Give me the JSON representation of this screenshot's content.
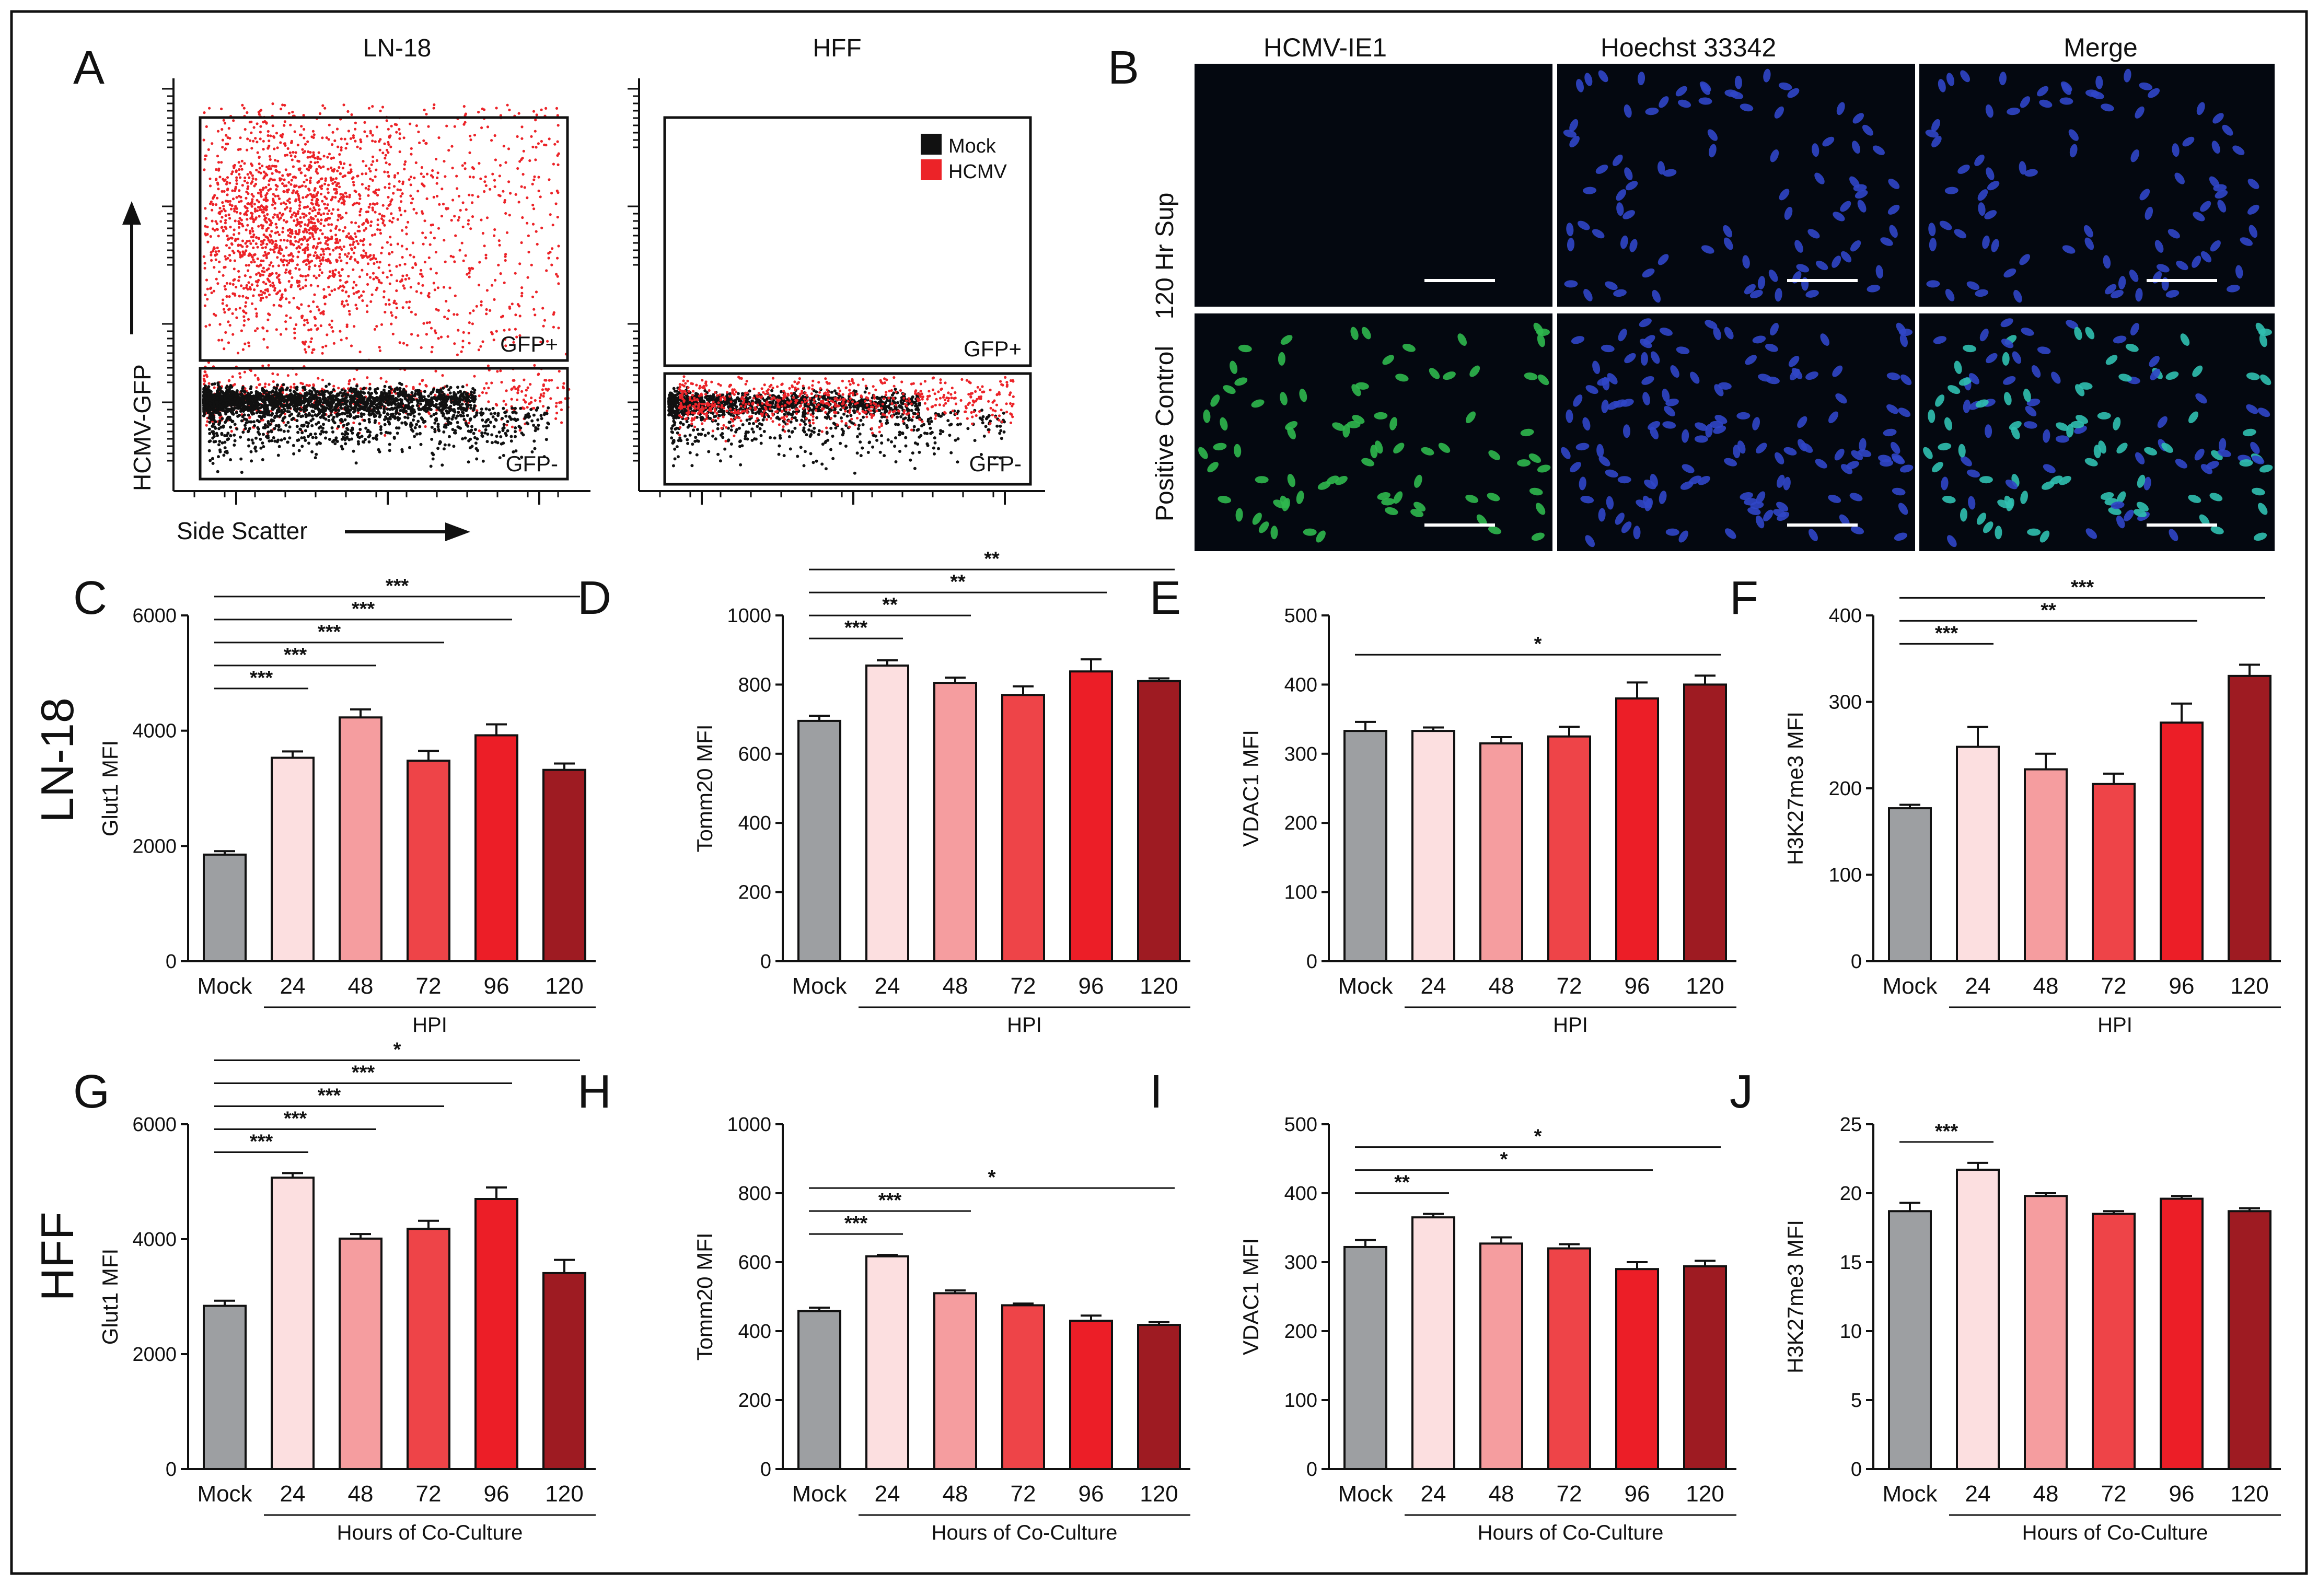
{
  "colors": {
    "mock": "#9d9fa2",
    "h24": "#fcdfe0",
    "h48": "#f59d9f",
    "h72": "#ee4448",
    "h96": "#ec1e27",
    "h120": "#9e1b22",
    "dot_red": "#ec2328",
    "dot_black": "#111111",
    "micro_blue": "#3046c8",
    "micro_green": "#2fb84e",
    "micro_cyan": "#30c0b0"
  },
  "row_labels": {
    "ln18": "LN-18",
    "hff": "HFF"
  },
  "panel_a": {
    "letter": "A",
    "ln18_title": "LN-18",
    "hff_title": "HFF",
    "y_label": "HCMV-GFP",
    "x_label": "Side Scatter",
    "gate_pos": "GFP+",
    "gate_neg": "GFP-",
    "legend": [
      "Mock",
      "HCMV"
    ]
  },
  "panel_b": {
    "letter": "B",
    "columns": [
      "HCMV-IE1",
      "Hoechst 33342",
      "Merge"
    ],
    "rows": [
      "120 Hr Sup",
      "Positive Control"
    ]
  },
  "chart_data": [
    {
      "type": "bar",
      "id": "C",
      "letter": "C",
      "ylabel": "Glut1 MFI",
      "ylim": [
        0,
        6000
      ],
      "yticks": [
        0,
        2000,
        4000,
        6000
      ],
      "categories": [
        "Mock",
        "24",
        "48",
        "72",
        "96",
        "120"
      ],
      "values": [
        1850,
        3530,
        4230,
        3480,
        3920,
        3320
      ],
      "errors": [
        60,
        110,
        140,
        170,
        190,
        110
      ],
      "group_label": "HPI",
      "sig": [
        {
          "from": 0,
          "to": 1,
          "label": "***"
        },
        {
          "from": 0,
          "to": 2,
          "label": "***"
        },
        {
          "from": 0,
          "to": 3,
          "label": "***"
        },
        {
          "from": 0,
          "to": 4,
          "label": "***"
        },
        {
          "from": 0,
          "to": 5,
          "label": "***"
        }
      ]
    },
    {
      "type": "bar",
      "id": "D",
      "letter": "D",
      "ylabel": "Tomm20 MFI",
      "ylim": [
        0,
        1000
      ],
      "yticks": [
        0,
        200,
        400,
        600,
        800,
        1000
      ],
      "categories": [
        "Mock",
        "24",
        "48",
        "72",
        "96",
        "120"
      ],
      "values": [
        695,
        855,
        805,
        770,
        838,
        810
      ],
      "errors": [
        15,
        15,
        15,
        25,
        35,
        8
      ],
      "group_label": "HPI",
      "sig": [
        {
          "from": 0,
          "to": 1,
          "label": "***"
        },
        {
          "from": 0,
          "to": 2,
          "label": "**"
        },
        {
          "from": 0,
          "to": 4,
          "label": "**"
        },
        {
          "from": 0,
          "to": 5,
          "label": "**"
        }
      ]
    },
    {
      "type": "bar",
      "id": "E",
      "letter": "E",
      "ylabel": "VDAC1 MFI",
      "ylim": [
        0,
        500
      ],
      "yticks": [
        0,
        100,
        200,
        300,
        400,
        500
      ],
      "categories": [
        "Mock",
        "24",
        "48",
        "72",
        "96",
        "120"
      ],
      "values": [
        333,
        333,
        315,
        325,
        380,
        400
      ],
      "errors": [
        13,
        5,
        9,
        14,
        23,
        13
      ],
      "group_label": "HPI",
      "sig": [
        {
          "from": 0,
          "to": 5,
          "label": "*"
        }
      ]
    },
    {
      "type": "bar",
      "id": "F",
      "letter": "F",
      "ylabel": "H3K27me3 MFI",
      "ylim": [
        0,
        400
      ],
      "yticks": [
        0,
        100,
        200,
        300,
        400
      ],
      "categories": [
        "Mock",
        "24",
        "48",
        "72",
        "96",
        "120"
      ],
      "values": [
        177,
        248,
        222,
        205,
        276,
        330
      ],
      "errors": [
        4,
        23,
        18,
        12,
        22,
        13
      ],
      "group_label": "HPI",
      "sig": [
        {
          "from": 0,
          "to": 1,
          "label": "***"
        },
        {
          "from": 0,
          "to": 4,
          "label": "**"
        },
        {
          "from": 0,
          "to": 5,
          "label": "***"
        }
      ]
    },
    {
      "type": "bar",
      "id": "G",
      "letter": "G",
      "ylabel": "Glut1 MFI",
      "ylim": [
        0,
        6000
      ],
      "yticks": [
        0,
        2000,
        4000,
        6000
      ],
      "categories": [
        "Mock",
        "24",
        "48",
        "72",
        "96",
        "120"
      ],
      "values": [
        2840,
        5070,
        4010,
        4180,
        4700,
        3410
      ],
      "errors": [
        90,
        80,
        80,
        140,
        200,
        230
      ],
      "group_label": "Hours of Co-Culture",
      "sig": [
        {
          "from": 0,
          "to": 1,
          "label": "***"
        },
        {
          "from": 0,
          "to": 2,
          "label": "***"
        },
        {
          "from": 0,
          "to": 3,
          "label": "***"
        },
        {
          "from": 0,
          "to": 4,
          "label": "***"
        },
        {
          "from": 0,
          "to": 5,
          "label": "*"
        }
      ]
    },
    {
      "type": "bar",
      "id": "H",
      "letter": "H",
      "ylabel": "Tomm20 MFI",
      "ylim": [
        0,
        1000
      ],
      "yticks": [
        0,
        200,
        400,
        600,
        800,
        1000
      ],
      "categories": [
        "Mock",
        "24",
        "48",
        "72",
        "96",
        "120"
      ],
      "values": [
        458,
        617,
        510,
        475,
        430,
        418
      ],
      "errors": [
        10,
        4,
        8,
        5,
        15,
        8
      ],
      "group_label": "Hours of Co-Culture",
      "sig": [
        {
          "from": 0,
          "to": 1,
          "label": "***"
        },
        {
          "from": 0,
          "to": 2,
          "label": "***"
        },
        {
          "from": 0,
          "to": 5,
          "label": "*"
        }
      ]
    },
    {
      "type": "bar",
      "id": "I",
      "letter": "I",
      "ylabel": "VDAC1 MFI",
      "ylim": [
        0,
        500
      ],
      "yticks": [
        0,
        100,
        200,
        300,
        400,
        500
      ],
      "categories": [
        "Mock",
        "24",
        "48",
        "72",
        "96",
        "120"
      ],
      "values": [
        322,
        365,
        327,
        320,
        290,
        294
      ],
      "errors": [
        10,
        5,
        9,
        6,
        10,
        8
      ],
      "group_label": "Hours of Co-Culture",
      "sig": [
        {
          "from": 0,
          "to": 1,
          "label": "**"
        },
        {
          "from": 0,
          "to": 4,
          "label": "*"
        },
        {
          "from": 0,
          "to": 5,
          "label": "*"
        }
      ]
    },
    {
      "type": "bar",
      "id": "J",
      "letter": "J",
      "ylabel": "H3K27me3 MFI",
      "ylim": [
        0,
        25
      ],
      "yticks": [
        0,
        5,
        10,
        15,
        20,
        25
      ],
      "categories": [
        "Mock",
        "24",
        "48",
        "72",
        "96",
        "120"
      ],
      "values": [
        18.7,
        21.7,
        19.8,
        18.5,
        19.6,
        18.7
      ],
      "errors": [
        0.6,
        0.5,
        0.2,
        0.2,
        0.2,
        0.2
      ],
      "group_label": "Hours of Co-Culture",
      "sig": [
        {
          "from": 0,
          "to": 1,
          "label": "***"
        }
      ]
    }
  ]
}
